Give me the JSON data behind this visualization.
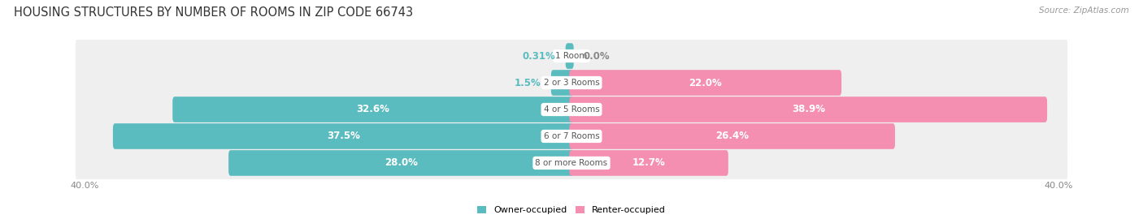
{
  "title": "HOUSING STRUCTURES BY NUMBER OF ROOMS IN ZIP CODE 66743",
  "source": "Source: ZipAtlas.com",
  "categories": [
    "1 Room",
    "2 or 3 Rooms",
    "4 or 5 Rooms",
    "6 or 7 Rooms",
    "8 or more Rooms"
  ],
  "owner_values": [
    0.31,
    1.5,
    32.6,
    37.5,
    28.0
  ],
  "renter_values": [
    0.0,
    22.0,
    38.9,
    26.4,
    12.7
  ],
  "owner_color": "#5bbcbf",
  "renter_color": "#f48fb1",
  "row_bg_color": "#efefef",
  "max_val": 40.0,
  "owner_text_color_inside": "#ffffff",
  "renter_text_color_inside": "#ffffff",
  "owner_text_color_outside": "#5bbcbf",
  "renter_text_color_outside": "#888888",
  "legend_owner": "Owner-occupied",
  "legend_renter": "Renter-occupied",
  "background_color": "#ffffff",
  "title_fontsize": 10.5,
  "label_fontsize": 8.5,
  "category_fontsize": 7.5,
  "tick_fontsize": 8,
  "small_threshold": 5.0
}
